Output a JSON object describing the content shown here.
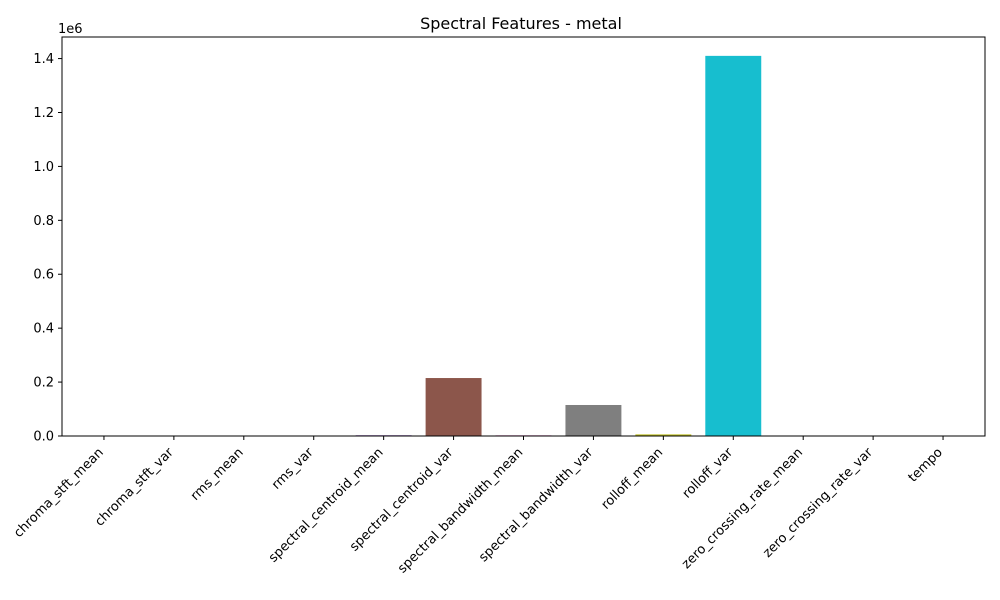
{
  "chart_data": {
    "type": "bar",
    "title": "Spectral Features - metal",
    "xlabel": "",
    "ylabel": "",
    "y_offset_label": "1e6",
    "categories": [
      "chroma_stft_mean",
      "chroma_stft_var",
      "rms_mean",
      "rms_var",
      "spectral_centroid_mean",
      "spectral_centroid_var",
      "spectral_bandwidth_mean",
      "spectral_bandwidth_var",
      "rolloff_mean",
      "rolloff_var",
      "zero_crossing_rate_mean",
      "zero_crossing_rate_var",
      "tempo"
    ],
    "values": [
      0.4,
      0.09,
      0.13,
      0.005,
      2900,
      215000,
      2600,
      115000,
      6000,
      1410000,
      0.14,
      0.004,
      123
    ],
    "colors": [
      "#1f77b4",
      "#ff7f0e",
      "#2ca02c",
      "#d62728",
      "#9467bd",
      "#8c564b",
      "#e377c2",
      "#7f7f7f",
      "#bcbd22",
      "#17becf",
      "#1f77b4",
      "#ff7f0e",
      "#2ca02c"
    ],
    "ylim": [
      0,
      1480000
    ],
    "yticks": [
      0,
      0.2,
      0.4,
      0.6,
      0.8,
      1.0,
      1.2,
      1.4
    ],
    "ytick_labels": [
      "0.0",
      "0.2",
      "0.4",
      "0.6",
      "0.8",
      "1.0",
      "1.2",
      "1.4"
    ],
    "ytick_multiplier": 1000000,
    "grid": false,
    "legend": "none"
  }
}
